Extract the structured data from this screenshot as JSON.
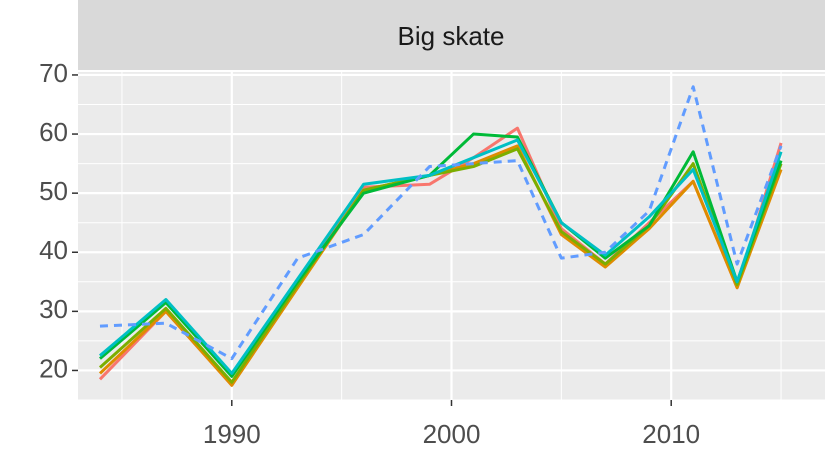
{
  "chart_data": {
    "type": "line",
    "title": "Big skate",
    "x": [
      1984,
      1987,
      1990,
      1993,
      1996,
      1999,
      2001,
      2003,
      2005,
      2007,
      2009,
      2011,
      2013,
      2015
    ],
    "series": [
      {
        "color": "#F8766D",
        "linetype": "solid",
        "values": [
          18.5,
          30,
          17.5,
          35,
          51,
          51.5,
          56,
          61,
          44,
          38,
          45,
          52,
          34,
          58.5
        ]
      },
      {
        "color": "#DE8C00",
        "linetype": "solid",
        "values": [
          19.5,
          30,
          17.5,
          34,
          50.5,
          53,
          55,
          58,
          43,
          37.5,
          44,
          52,
          34,
          54
        ]
      },
      {
        "color": "#7CAE00",
        "linetype": "solid",
        "values": [
          20.5,
          30.5,
          18,
          34.5,
          50.5,
          53,
          54.5,
          57.5,
          43.5,
          38,
          44.5,
          55,
          34.5,
          55
        ]
      },
      {
        "color": "#00BA38",
        "linetype": "solid",
        "values": [
          22,
          31.5,
          19,
          35,
          50,
          53,
          60,
          59.5,
          45,
          39,
          44.5,
          57,
          35,
          55.5
        ]
      },
      {
        "color": "#00BFC4",
        "linetype": "solid",
        "values": [
          22.5,
          32,
          19.5,
          35.5,
          51.5,
          53,
          56,
          59,
          45,
          39.5,
          46,
          54,
          35,
          57
        ]
      },
      {
        "color": "#619CFF",
        "linetype": "dashed",
        "values": [
          27.5,
          28,
          22,
          39,
          43,
          54.5,
          55,
          55.5,
          39,
          40,
          47,
          68,
          38,
          58
        ]
      }
    ],
    "xlim": [
      1983,
      2017
    ],
    "ylim": [
      15,
      70.5
    ],
    "xticks": [
      1990,
      2000,
      2010
    ],
    "yticks": [
      20,
      30,
      40,
      50,
      60,
      70
    ],
    "grid": true
  }
}
